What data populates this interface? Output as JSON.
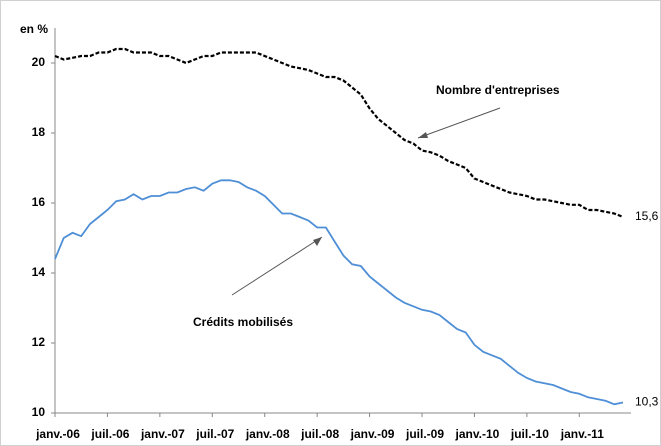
{
  "chart_data": {
    "type": "line",
    "y_label": "en %",
    "categories": [
      "janv.-06",
      null,
      null,
      null,
      null,
      null,
      "juil.-06",
      null,
      null,
      null,
      null,
      null,
      "janv.-07",
      null,
      null,
      null,
      null,
      null,
      "juil.-07",
      null,
      null,
      null,
      null,
      null,
      "janv.-08",
      null,
      null,
      null,
      null,
      null,
      "juil.-08",
      null,
      null,
      null,
      null,
      null,
      "janv.-09",
      null,
      null,
      null,
      null,
      null,
      "juil.-09",
      null,
      null,
      null,
      null,
      null,
      "janv.-10",
      null,
      null,
      null,
      null,
      null,
      "juil.-10",
      null,
      null,
      null,
      null,
      null,
      "janv.-11",
      null,
      null,
      null,
      null,
      null
    ],
    "series": [
      {
        "name": "Nombre d'entreprises",
        "color": "#000000",
        "dashed": true,
        "values": [
          20.2,
          20.1,
          20.15,
          20.2,
          20.2,
          20.3,
          20.3,
          20.4,
          20.4,
          20.3,
          20.3,
          20.3,
          20.2,
          20.2,
          20.1,
          20.0,
          20.1,
          20.2,
          20.2,
          20.3,
          20.3,
          20.3,
          20.3,
          20.3,
          20.2,
          20.1,
          20.0,
          19.9,
          19.85,
          19.8,
          19.7,
          19.6,
          19.6,
          19.5,
          19.3,
          19.1,
          18.7,
          18.4,
          18.2,
          18.0,
          17.8,
          17.7,
          17.5,
          17.45,
          17.35,
          17.2,
          17.1,
          17.0,
          16.7,
          16.6,
          16.5,
          16.4,
          16.3,
          16.25,
          16.2,
          16.1,
          16.1,
          16.05,
          16.0,
          15.95,
          15.95,
          15.8,
          15.8,
          15.75,
          15.7,
          15.6
        ],
        "value_labels": [
          null,
          null,
          null,
          null,
          null,
          null,
          null,
          null,
          null,
          null,
          null,
          null,
          null,
          null,
          null,
          null,
          null,
          null,
          null,
          null,
          null,
          null,
          null,
          null,
          null,
          null,
          null,
          null,
          null,
          null,
          null,
          null,
          null,
          null,
          null,
          null,
          null,
          null,
          null,
          null,
          null,
          null,
          null,
          null,
          null,
          null,
          null,
          null,
          null,
          null,
          null,
          null,
          null,
          null,
          null,
          null,
          null,
          null,
          null,
          null,
          null,
          null,
          null,
          null,
          null,
          "15,6"
        ]
      },
      {
        "name": "Crédits mobilisés",
        "color": "#4f8fd6",
        "dashed": false,
        "values": [
          14.4,
          15.0,
          15.15,
          15.05,
          15.4,
          15.6,
          15.8,
          16.05,
          16.1,
          16.25,
          16.1,
          16.2,
          16.2,
          16.3,
          16.3,
          16.4,
          16.45,
          16.35,
          16.55,
          16.65,
          16.65,
          16.6,
          16.45,
          16.35,
          16.2,
          15.95,
          15.7,
          15.7,
          15.6,
          15.5,
          15.3,
          15.3,
          14.9,
          14.5,
          14.25,
          14.2,
          13.9,
          13.7,
          13.5,
          13.3,
          13.15,
          13.05,
          12.95,
          12.9,
          12.8,
          12.6,
          12.4,
          12.3,
          11.95,
          11.75,
          11.65,
          11.55,
          11.35,
          11.15,
          11.0,
          10.9,
          10.85,
          10.8,
          10.7,
          10.6,
          10.55,
          10.45,
          10.4,
          10.35,
          10.25,
          10.3
        ],
        "value_labels": [
          null,
          null,
          null,
          null,
          null,
          null,
          null,
          null,
          null,
          null,
          null,
          null,
          null,
          null,
          null,
          null,
          null,
          null,
          null,
          null,
          null,
          null,
          null,
          null,
          null,
          null,
          null,
          null,
          null,
          null,
          null,
          null,
          null,
          null,
          null,
          null,
          null,
          null,
          null,
          null,
          null,
          null,
          null,
          null,
          null,
          null,
          null,
          null,
          null,
          null,
          null,
          null,
          null,
          null,
          null,
          null,
          null,
          null,
          null,
          null,
          null,
          null,
          null,
          null,
          null,
          "10,3"
        ]
      }
    ],
    "ylim": [
      10,
      21
    ],
    "yticks": [
      10,
      12,
      14,
      16,
      18,
      20
    ],
    "grid": false
  }
}
